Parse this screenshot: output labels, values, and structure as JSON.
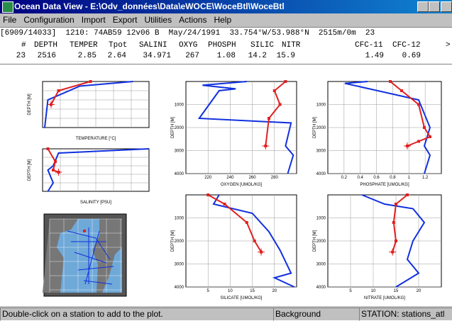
{
  "window": {
    "title": "Ocean Data View - E:\\Odv_données\\Data\\eWOCE\\WoceBtl\\WoceBtl"
  },
  "menu": [
    "File",
    "Configuration",
    "Import",
    "Export",
    "Utilities",
    "Actions",
    "Help"
  ],
  "station_info": "[6909/14033]  1210: 74AB59 12v06 B  May/24/1991  33.754°W/53.988°N  2515m/0m  23",
  "table": {
    "header": [
      "#",
      "DEPTH",
      "TEMPER",
      "Tpot",
      "SALINI",
      "OXYG",
      "PHOSPH",
      "SILIC",
      "NITR",
      "CFC-11",
      "CFC-12",
      ">"
    ],
    "row": [
      "23",
      "2516",
      "2.85",
      "2.64",
      "34.971",
      "267",
      "1.08",
      "14.2",
      "15.9",
      "1.49",
      "0.69"
    ]
  },
  "plots": [
    {
      "x_label": "TEMPERATURE [°C]",
      "y_label": "DEPTH [M]"
    },
    {
      "x_label": "SALINITY [PSU]",
      "y_label": "DEPTH [M]"
    },
    {
      "x_label": "OXYGEN [UMOL/KG]",
      "y_label": "DEPTH [M]",
      "x_ticks": [
        "220",
        "240",
        "260",
        "280"
      ],
      "y_ticks": [
        "1000",
        "2000",
        "3000",
        "4000"
      ]
    },
    {
      "x_label": "PHOSPHATE [UMOL/KG]",
      "y_label": "DEPTH [M]",
      "x_ticks": [
        "0.2",
        "0.4",
        "0.6",
        "0.8",
        "1",
        "1.2"
      ],
      "y_ticks": [
        "1000",
        "2000",
        "3000",
        "4000"
      ]
    },
    {
      "x_label": "SILICATE [UMOL/KG]",
      "y_label": "DEPTH [M]",
      "x_ticks": [
        "5",
        "10",
        "15",
        "20"
      ],
      "y_ticks": [
        "1000",
        "2000",
        "3000",
        "4000"
      ]
    },
    {
      "x_label": "NITRATE [UMOL/KG]",
      "y_label": "DEPTH [M]",
      "x_ticks": [
        "5",
        "10",
        "15",
        "20"
      ],
      "y_ticks": [
        "1000",
        "2000",
        "3000",
        "4000"
      ]
    }
  ],
  "status": [
    "Double-click on a station to add to the plot.",
    "Background",
    "STATION: stations_atl"
  ]
}
